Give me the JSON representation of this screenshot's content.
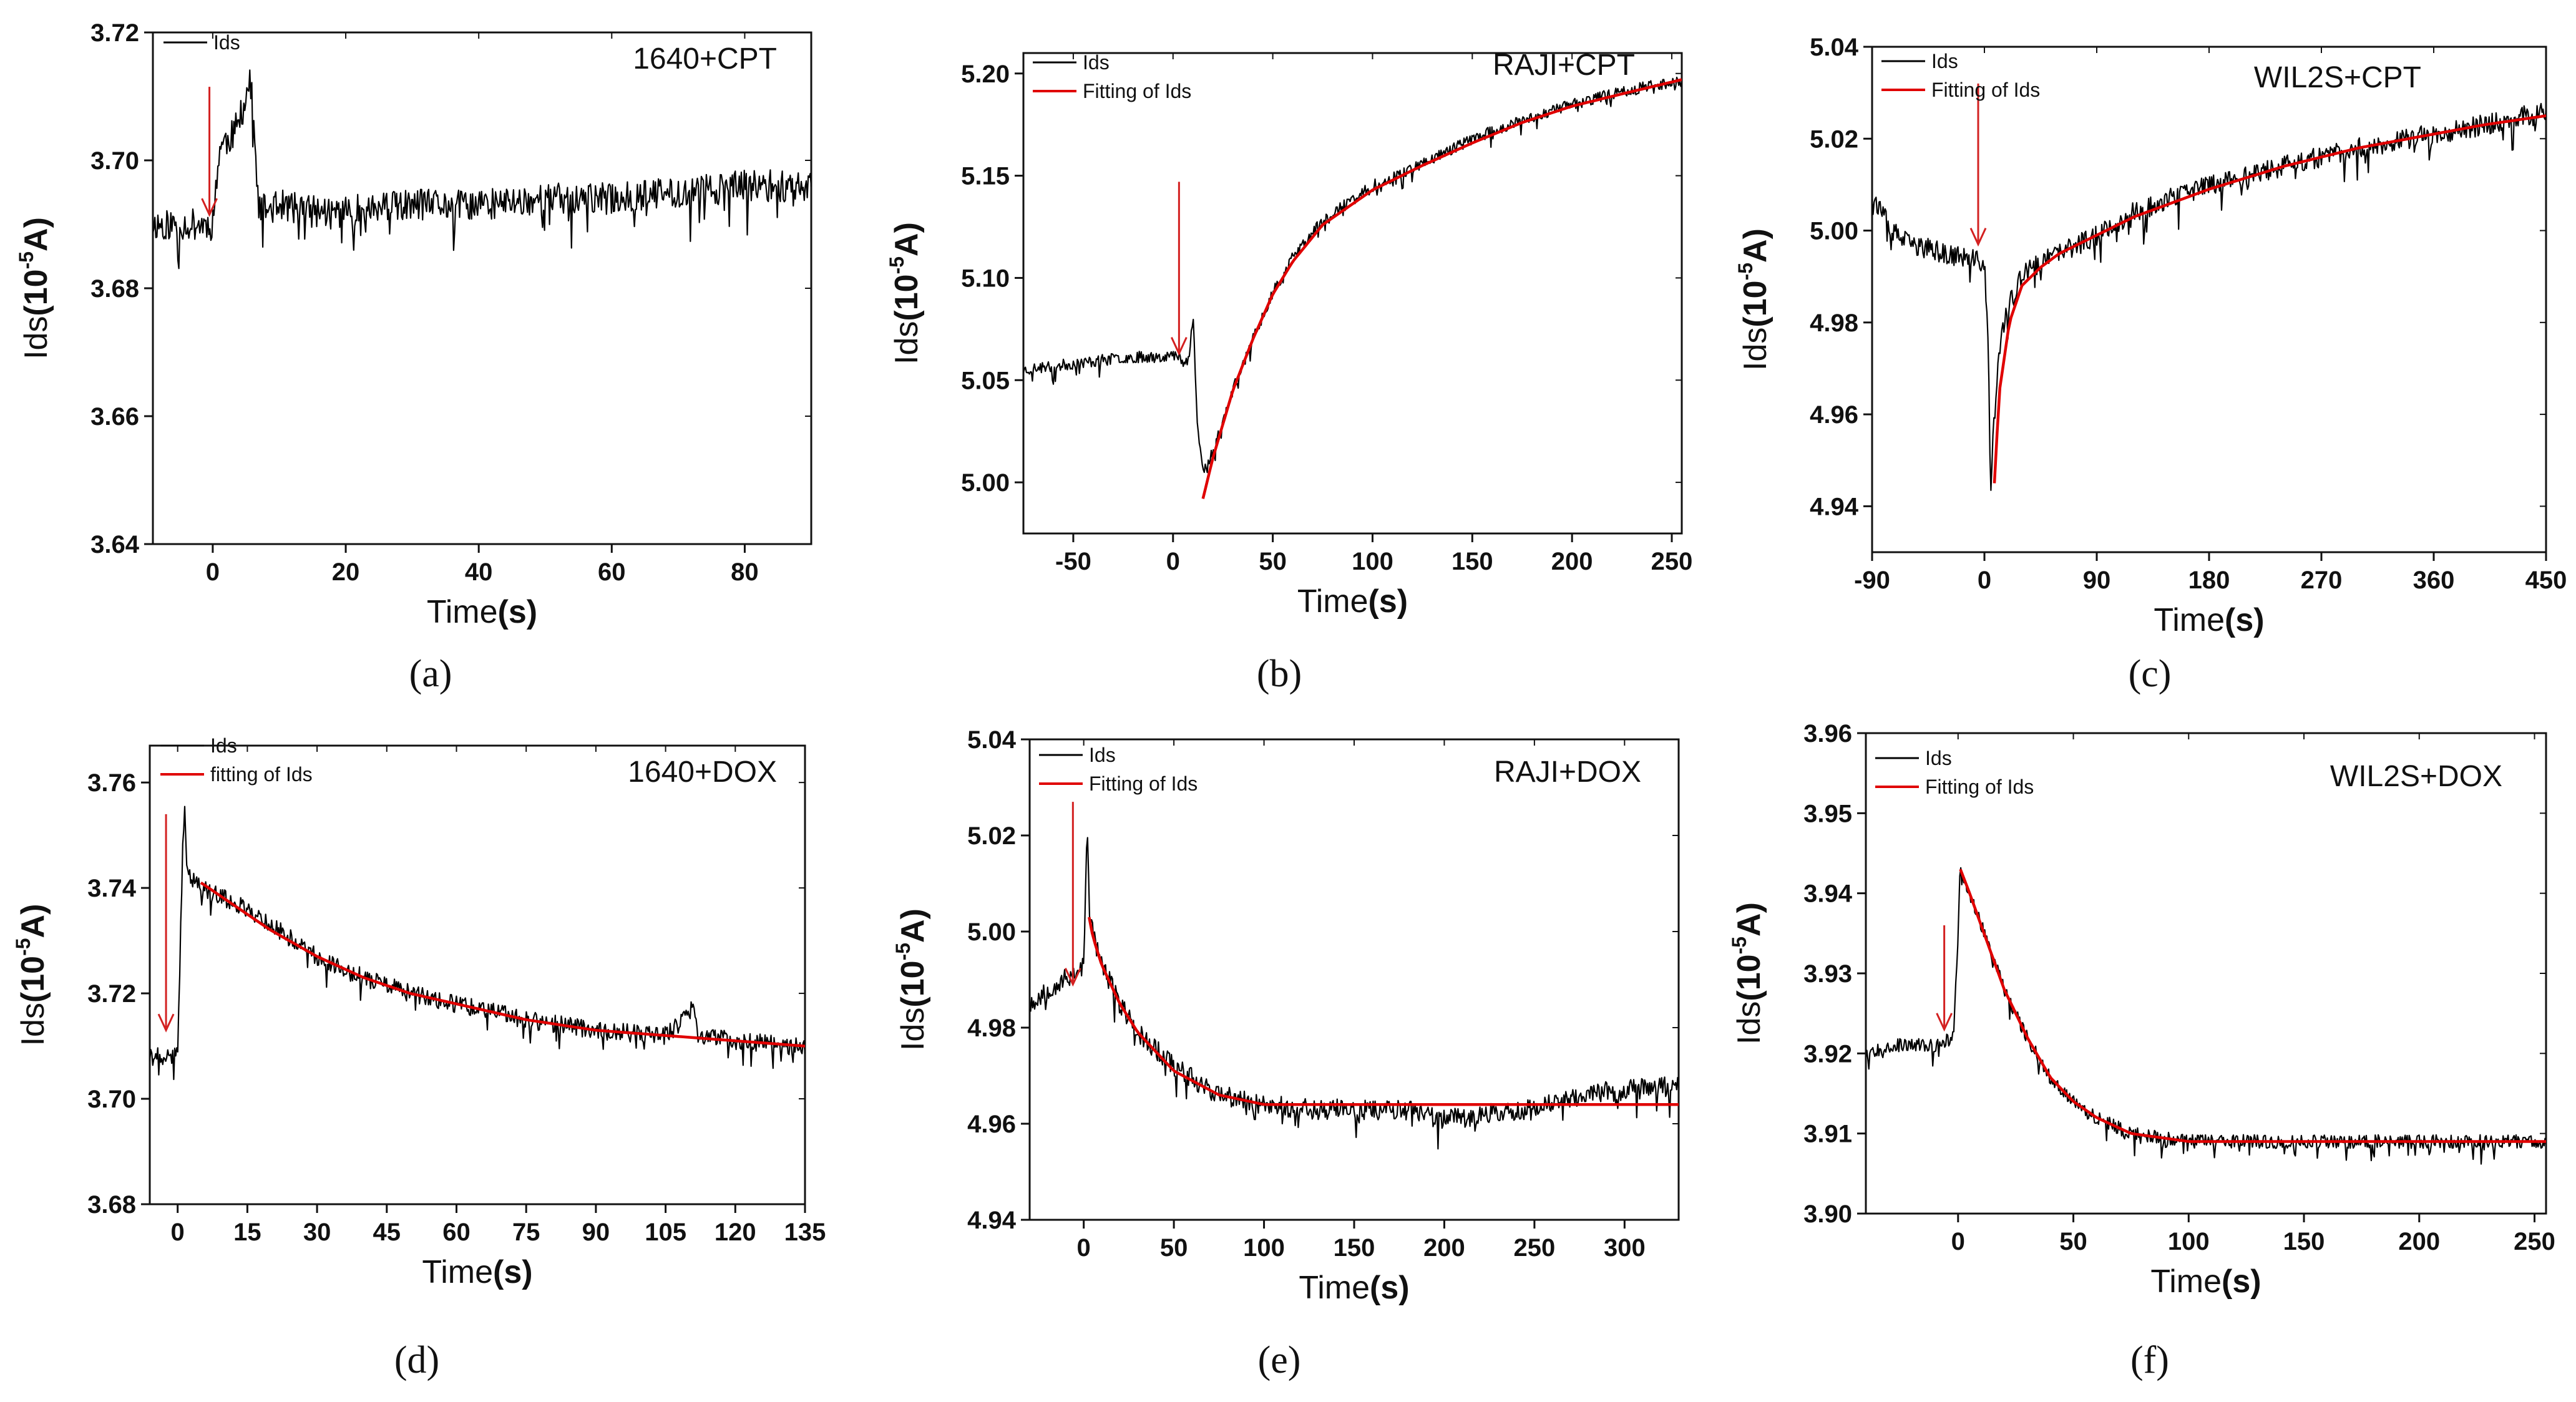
{
  "figure": {
    "panel_count": 6
  },
  "chart_data": [
    {
      "type": "line",
      "panel": "(a)",
      "annotation": "1640+CPT",
      "xlabel_prefix": "Time",
      "xlabel_unit": "(s)",
      "ylabel_prefix": "Ids",
      "ylabel_unit_base": "(10",
      "ylabel_unit_exp": "-5",
      "ylabel_unit_suffix": "A)",
      "xlim": [
        -9,
        90
      ],
      "ylim": [
        3.64,
        3.72
      ],
      "xticks": [
        0,
        20,
        40,
        60,
        80
      ],
      "xtick_labels": [
        "0",
        "20",
        "40",
        "60",
        "80"
      ],
      "yticks": [
        3.64,
        3.66,
        3.68,
        3.7,
        3.72
      ],
      "ytick_labels": [
        "3.64",
        "3.66",
        "3.68",
        "3.70",
        "3.72"
      ],
      "arrow": {
        "x": -0.5,
        "y_from": 3.7115,
        "y_to": 3.6915
      },
      "series": [
        {
          "name": "Ids",
          "role": "data",
          "color": "#000000",
          "x": [
            -9,
            -5,
            -2,
            0,
            1,
            2,
            3,
            4,
            5,
            5.5,
            6,
            6.5,
            7,
            10,
            15,
            20,
            30,
            40,
            50,
            60,
            70,
            80,
            90
          ],
          "y": [
            3.69,
            3.69,
            3.69,
            3.69,
            3.702,
            3.703,
            3.704,
            3.706,
            3.71,
            3.712,
            3.71,
            3.698,
            3.692,
            3.693,
            3.692,
            3.692,
            3.693,
            3.693,
            3.694,
            3.694,
            3.695,
            3.696,
            3.696
          ],
          "noise": 0.0025,
          "seed": 11
        }
      ],
      "legend": [
        {
          "label": "Ids",
          "color": "#000000"
        }
      ]
    },
    {
      "type": "line",
      "panel": "(b)",
      "annotation": "RAJI+CPT",
      "xlabel_prefix": "Time",
      "xlabel_unit": "(s)",
      "ylabel_prefix": "Ids",
      "ylabel_unit_base": "(10",
      "ylabel_unit_exp": "-5",
      "ylabel_unit_suffix": "A)",
      "xlim": [
        -75,
        255
      ],
      "ylim": [
        4.975,
        5.21
      ],
      "xticks": [
        -50,
        0,
        50,
        100,
        150,
        200,
        250
      ],
      "xtick_labels": [
        "-50",
        "0",
        "50",
        "100",
        "150",
        "200",
        "250"
      ],
      "yticks": [
        5.0,
        5.05,
        5.1,
        5.15,
        5.2
      ],
      "ytick_labels": [
        "5.00",
        "5.05",
        "5.10",
        "5.15",
        "5.20"
      ],
      "arrow": {
        "x": 3,
        "y_from": 5.147,
        "y_to": 5.063
      },
      "series": [
        {
          "name": "Ids",
          "role": "data",
          "color": "#000000",
          "x": [
            -75,
            -50,
            -25,
            0,
            8,
            10,
            12,
            15,
            20,
            30,
            40,
            50,
            60,
            75,
            100,
            125,
            150,
            175,
            200,
            225,
            255
          ],
          "y": [
            5.055,
            5.058,
            5.061,
            5.062,
            5.06,
            5.085,
            5.03,
            5.005,
            5.015,
            5.045,
            5.07,
            5.093,
            5.11,
            5.128,
            5.145,
            5.156,
            5.168,
            5.177,
            5.185,
            5.191,
            5.197
          ],
          "noise": 0.0028,
          "seed": 23
        },
        {
          "name": "Fitting of Ids",
          "role": "fit",
          "color": "#e00000",
          "x": [
            15,
            20,
            30,
            40,
            50,
            60,
            75,
            100,
            125,
            150,
            175,
            200,
            225,
            255
          ],
          "y": [
            4.992,
            5.012,
            5.045,
            5.07,
            5.092,
            5.108,
            5.126,
            5.143,
            5.155,
            5.166,
            5.176,
            5.184,
            5.19,
            5.197
          ],
          "noise": 0,
          "seed": 0
        }
      ],
      "legend": [
        {
          "label": "Ids",
          "color": "#000000"
        },
        {
          "label": "Fitting of Ids",
          "color": "#e00000"
        }
      ]
    },
    {
      "type": "line",
      "panel": "(c)",
      "annotation": "WIL2S+CPT",
      "xlabel_prefix": "Time",
      "xlabel_unit": "(s)",
      "ylabel_prefix": "Ids",
      "ylabel_unit_base": "(10",
      "ylabel_unit_exp": "-5",
      "ylabel_unit_suffix": "A)",
      "xlim": [
        -90,
        450
      ],
      "ylim": [
        4.93,
        5.04
      ],
      "xticks": [
        -90,
        0,
        90,
        180,
        270,
        360,
        450
      ],
      "xtick_labels": [
        "-90",
        "0",
        "90",
        "180",
        "270",
        "360",
        "450"
      ],
      "yticks": [
        4.94,
        4.96,
        4.98,
        5.0,
        5.02,
        5.04
      ],
      "ytick_labels": [
        "4.94",
        "4.96",
        "4.98",
        "5.00",
        "5.02",
        "5.04"
      ],
      "arrow": {
        "x": -5,
        "y_from": 5.032,
        "y_to": 4.997
      },
      "series": [
        {
          "name": "Ids",
          "role": "data",
          "color": "#000000",
          "x": [
            -90,
            -75,
            -60,
            -45,
            -30,
            -15,
            0,
            3,
            5,
            8,
            12,
            20,
            30,
            45,
            60,
            90,
            120,
            180,
            240,
            300,
            360,
            400,
            450
          ],
          "y": [
            5.008,
            5.0,
            4.997,
            4.996,
            4.995,
            4.994,
            4.993,
            4.975,
            4.943,
            4.96,
            4.975,
            4.984,
            4.99,
            4.993,
            4.995,
            4.999,
            5.004,
            5.01,
            5.014,
            5.018,
            5.021,
            5.023,
            5.026
          ],
          "noise": 0.0023,
          "seed": 37
        },
        {
          "name": "Fitting of Ids",
          "role": "fit",
          "color": "#e00000",
          "x": [
            8,
            12,
            20,
            30,
            45,
            60,
            90,
            120,
            180,
            240,
            300,
            360,
            400,
            450
          ],
          "y": [
            4.945,
            4.965,
            4.98,
            4.988,
            4.992,
            4.995,
            4.999,
            5.003,
            5.009,
            5.014,
            5.018,
            5.021,
            5.023,
            5.025
          ],
          "noise": 0,
          "seed": 0
        }
      ],
      "legend": [
        {
          "label": "Ids",
          "color": "#000000"
        },
        {
          "label": "Fitting of Ids",
          "color": "#e00000"
        }
      ]
    },
    {
      "type": "line",
      "panel": "(d)",
      "annotation": "1640+DOX",
      "xlabel_prefix": "Time",
      "xlabel_unit": "(s)",
      "ylabel_prefix": "Ids",
      "ylabel_unit_base": "(10",
      "ylabel_unit_exp": "-5",
      "ylabel_unit_suffix": "A)",
      "xlim": [
        -6,
        135
      ],
      "ylim": [
        3.68,
        3.767
      ],
      "xticks": [
        0,
        15,
        30,
        45,
        60,
        75,
        90,
        105,
        120,
        135
      ],
      "xtick_labels": [
        "0",
        "15",
        "30",
        "45",
        "60",
        "75",
        "90",
        "105",
        "120",
        "135"
      ],
      "yticks": [
        3.68,
        3.7,
        3.72,
        3.74,
        3.76
      ],
      "ytick_labels": [
        "3.68",
        "3.70",
        "3.72",
        "3.74",
        "3.76"
      ],
      "arrow": {
        "x": -2.5,
        "y_from": 3.754,
        "y_to": 3.713
      },
      "series": [
        {
          "name": "Ids",
          "role": "data",
          "color": "#000000",
          "x": [
            -6,
            -3,
            0,
            1,
            1.5,
            2,
            3,
            5,
            10,
            15,
            20,
            30,
            40,
            50,
            60,
            75,
            90,
            105,
            110,
            111,
            112,
            120,
            135
          ],
          "y": [
            3.708,
            3.708,
            3.708,
            3.745,
            3.755,
            3.745,
            3.742,
            3.74,
            3.738,
            3.736,
            3.733,
            3.727,
            3.723,
            3.72,
            3.718,
            3.715,
            3.713,
            3.712,
            3.716,
            3.718,
            3.712,
            3.711,
            3.71
          ],
          "noise": 0.0017,
          "seed": 41
        },
        {
          "name": "fitting of Ids",
          "role": "fit",
          "color": "#e00000",
          "x": [
            5,
            10,
            15,
            20,
            30,
            40,
            50,
            60,
            75,
            90,
            105,
            120,
            135
          ],
          "y": [
            3.741,
            3.738,
            3.735,
            3.732,
            3.727,
            3.723,
            3.72,
            3.718,
            3.715,
            3.713,
            3.712,
            3.711,
            3.71
          ],
          "noise": 0,
          "seed": 0
        }
      ],
      "legend": [
        {
          "label": "Ids",
          "color": "#000000"
        },
        {
          "label": "fitting of Ids",
          "color": "#e00000"
        }
      ]
    },
    {
      "type": "line",
      "panel": "(e)",
      "annotation": "RAJI+DOX",
      "xlabel_prefix": "Time",
      "xlabel_unit": "(s)",
      "ylabel_prefix": "Ids",
      "ylabel_unit_base": "(10",
      "ylabel_unit_exp": "-5",
      "ylabel_unit_suffix": "A)",
      "xlim": [
        -30,
        330
      ],
      "ylim": [
        4.94,
        5.04
      ],
      "xticks": [
        0,
        50,
        100,
        150,
        200,
        250,
        300
      ],
      "xtick_labels": [
        "0",
        "50",
        "100",
        "150",
        "200",
        "250",
        "300"
      ],
      "yticks": [
        4.94,
        4.96,
        4.98,
        5.0,
        5.02,
        5.04
      ],
      "ytick_labels": [
        "4.94",
        "4.96",
        "4.98",
        "5.00",
        "5.02",
        "5.04"
      ],
      "arrow": {
        "x": -6,
        "y_from": 5.027,
        "y_to": 4.989
      },
      "series": [
        {
          "name": "Ids",
          "role": "data",
          "color": "#000000",
          "x": [
            -30,
            -20,
            -10,
            0,
            2,
            3,
            5,
            10,
            20,
            30,
            50,
            75,
            100,
            125,
            150,
            175,
            200,
            225,
            250,
            275,
            300,
            330
          ],
          "y": [
            4.985,
            4.988,
            4.99,
            4.993,
            5.022,
            5.005,
            5.0,
            4.993,
            4.985,
            4.979,
            4.972,
            4.966,
            4.964,
            4.963,
            4.963,
            4.963,
            4.961,
            4.962,
            4.963,
            4.966,
            4.967,
            4.968
          ],
          "noise": 0.0022,
          "seed": 53
        },
        {
          "name": "Fitting of Ids",
          "role": "fit",
          "color": "#e00000",
          "x": [
            3,
            5,
            10,
            20,
            30,
            50,
            75,
            100,
            125,
            150,
            200,
            250,
            300,
            330
          ],
          "y": [
            5.003,
            4.999,
            4.993,
            4.985,
            4.979,
            4.971,
            4.966,
            4.964,
            4.964,
            4.964,
            4.964,
            4.964,
            4.964,
            4.964
          ],
          "noise": 0,
          "seed": 0
        }
      ],
      "legend": [
        {
          "label": "Ids",
          "color": "#000000"
        },
        {
          "label": "Fitting of Ids",
          "color": "#e00000"
        }
      ]
    },
    {
      "type": "line",
      "panel": "(f)",
      "annotation": "WIL2S+DOX",
      "xlabel_prefix": "Time",
      "xlabel_unit": "(s)",
      "ylabel_prefix": "Ids",
      "ylabel_unit_base": "(10",
      "ylabel_unit_exp": "-5",
      "ylabel_unit_suffix": "A)",
      "xlim": [
        -40,
        255
      ],
      "ylim": [
        3.9,
        3.96
      ],
      "xticks": [
        0,
        50,
        100,
        150,
        200,
        250
      ],
      "xtick_labels": [
        "0",
        "50",
        "100",
        "150",
        "200",
        "250"
      ],
      "yticks": [
        3.9,
        3.91,
        3.92,
        3.93,
        3.94,
        3.95,
        3.96
      ],
      "ytick_labels": [
        "3.90",
        "3.91",
        "3.92",
        "3.93",
        "3.94",
        "3.95",
        "3.96"
      ],
      "arrow": {
        "x": -6,
        "y_from": 3.936,
        "y_to": 3.923
      },
      "series": [
        {
          "name": "Ids",
          "role": "data",
          "color": "#000000",
          "x": [
            -40,
            -30,
            -20,
            -10,
            -2,
            0,
            1,
            2,
            5,
            10,
            20,
            30,
            40,
            50,
            60,
            75,
            100,
            125,
            150,
            200,
            255
          ],
          "y": [
            3.92,
            3.921,
            3.921,
            3.921,
            3.922,
            3.935,
            3.944,
            3.942,
            3.94,
            3.936,
            3.928,
            3.922,
            3.917,
            3.914,
            3.912,
            3.91,
            3.909,
            3.909,
            3.909,
            3.909,
            3.909
          ],
          "noise": 0.00085,
          "seed": 67
        },
        {
          "name": "Fitting of Ids",
          "role": "fit",
          "color": "#e00000",
          "x": [
            1,
            5,
            10,
            20,
            30,
            40,
            50,
            60,
            75,
            100,
            125,
            150,
            200,
            255
          ],
          "y": [
            3.943,
            3.94,
            3.936,
            3.928,
            3.922,
            3.917,
            3.914,
            3.912,
            3.91,
            3.909,
            3.909,
            3.909,
            3.909,
            3.909
          ],
          "noise": 0,
          "seed": 0
        }
      ],
      "legend": [
        {
          "label": "Ids",
          "color": "#000000"
        },
        {
          "label": "Fitting of Ids",
          "color": "#e00000"
        }
      ]
    }
  ]
}
